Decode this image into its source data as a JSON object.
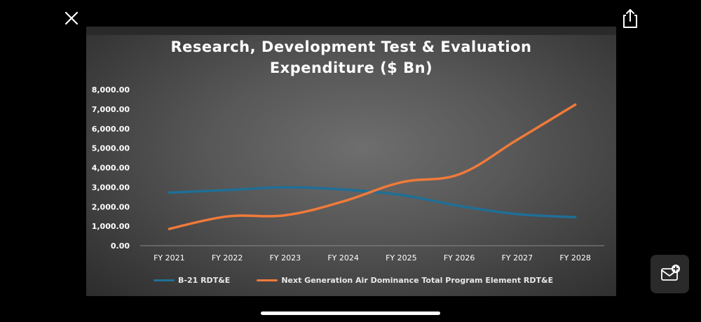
{
  "toolbar": {
    "close_icon": "close-icon",
    "share_icon": "share-icon",
    "mail_icon": "mail-add-icon"
  },
  "chart_data": {
    "type": "line",
    "title_lines": [
      "Research, Development Test & Evaluation",
      "Expenditure ($ Bn)"
    ],
    "xlabel": "",
    "ylabel": "",
    "categories": [
      "FY 2021",
      "FY 2022",
      "FY 2023",
      "FY 2024",
      "FY 2025",
      "FY 2026",
      "FY 2027",
      "FY 2028"
    ],
    "ylim": [
      0,
      8000
    ],
    "yticks": [
      0,
      1000,
      2000,
      3000,
      4000,
      5000,
      6000,
      7000,
      8000
    ],
    "ytick_labels": [
      "0.00",
      "1,000.00",
      "2,000.00",
      "3,000.00",
      "4,000.00",
      "5,000.00",
      "6,000.00",
      "7,000.00",
      "8,000.00"
    ],
    "grid": false,
    "legend_position": "bottom",
    "series": [
      {
        "name": "B-21 RDT&E",
        "color": "#1f6f96",
        "values": [
          2720,
          2850,
          2990,
          2880,
          2600,
          2040,
          1620,
          1460
        ]
      },
      {
        "name": "Next Generation Air Dominance Total Program Element RDT&E",
        "color": "#ef7a3a",
        "values": [
          860,
          1500,
          1560,
          2270,
          3250,
          3660,
          5430,
          7230
        ]
      }
    ]
  }
}
